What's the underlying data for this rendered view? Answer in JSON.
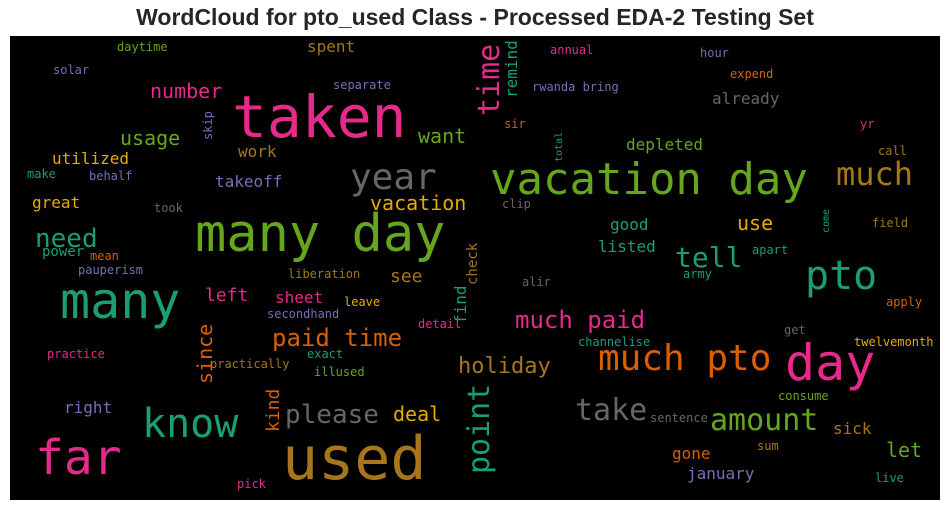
{
  "chart_data": {
    "type": "wordcloud",
    "title": "WordCloud for pto_used Class - Processed EDA-2 Testing Set",
    "colors": {
      "green": "#1b9e77",
      "orange": "#d95f02",
      "purple": "#7570b3",
      "pink": "#e7298a",
      "olive": "#66a61e",
      "gold": "#e6ab02",
      "brown": "#a6761d",
      "gray": "#666666"
    },
    "words": [
      {
        "text": "taken",
        "size": 58,
        "color": "pink"
      },
      {
        "text": "used",
        "size": 60,
        "color": "brown"
      },
      {
        "text": "many day",
        "size": 52,
        "color": "olive"
      },
      {
        "text": "vacation day",
        "size": 44,
        "color": "olive"
      },
      {
        "text": "many",
        "size": 50,
        "color": "green"
      },
      {
        "text": "far",
        "size": 48,
        "color": "pink"
      },
      {
        "text": "day",
        "size": 50,
        "color": "pink"
      },
      {
        "text": "know",
        "size": 40,
        "color": "green"
      },
      {
        "text": "pto",
        "size": 40,
        "color": "green"
      },
      {
        "text": "much pto",
        "size": 36,
        "color": "orange"
      },
      {
        "text": "year",
        "size": 36,
        "color": "gray"
      },
      {
        "text": "much",
        "size": 32,
        "color": "brown"
      },
      {
        "text": "time",
        "size": 30,
        "color": "pink"
      },
      {
        "text": "take",
        "size": 30,
        "color": "gray"
      },
      {
        "text": "point",
        "size": 30,
        "color": "green"
      },
      {
        "text": "amount",
        "size": 30,
        "color": "olive"
      },
      {
        "text": "tell",
        "size": 28,
        "color": "green"
      },
      {
        "text": "please",
        "size": 26,
        "color": "gray"
      },
      {
        "text": "need",
        "size": 26,
        "color": "green"
      },
      {
        "text": "much paid",
        "size": 24,
        "color": "pink"
      },
      {
        "text": "paid time",
        "size": 24,
        "color": "orange"
      },
      {
        "text": "holiday",
        "size": 22,
        "color": "brown"
      },
      {
        "text": "vacation",
        "size": 20,
        "color": "gold"
      },
      {
        "text": "want",
        "size": 20,
        "color": "olive"
      },
      {
        "text": "number",
        "size": 20,
        "color": "pink"
      },
      {
        "text": "usage",
        "size": 20,
        "color": "olive"
      },
      {
        "text": "deal",
        "size": 20,
        "color": "gold"
      },
      {
        "text": "use",
        "size": 20,
        "color": "gold"
      },
      {
        "text": "since",
        "size": 20,
        "color": "orange"
      },
      {
        "text": "let",
        "size": 20,
        "color": "olive"
      },
      {
        "text": "left",
        "size": 18,
        "color": "pink"
      },
      {
        "text": "kind",
        "size": 18,
        "color": "orange"
      },
      {
        "text": "see",
        "size": 18,
        "color": "brown"
      },
      {
        "text": "sick",
        "size": 16,
        "color": "brown"
      },
      {
        "text": "find",
        "size": 16,
        "color": "green"
      },
      {
        "text": "remind",
        "size": 16,
        "color": "green"
      },
      {
        "text": "utilized",
        "size": 16,
        "color": "gold"
      },
      {
        "text": "spent",
        "size": 16,
        "color": "brown"
      },
      {
        "text": "already",
        "size": 16,
        "color": "gray"
      },
      {
        "text": "depleted",
        "size": 16,
        "color": "olive"
      },
      {
        "text": "sheet",
        "size": 16,
        "color": "pink"
      },
      {
        "text": "good",
        "size": 16,
        "color": "green"
      },
      {
        "text": "listed",
        "size": 16,
        "color": "green"
      },
      {
        "text": "work",
        "size": 16,
        "color": "brown"
      },
      {
        "text": "takeoff",
        "size": 16,
        "color": "purple"
      },
      {
        "text": "great",
        "size": 16,
        "color": "gold"
      },
      {
        "text": "gone",
        "size": 16,
        "color": "orange"
      },
      {
        "text": "january",
        "size": 16,
        "color": "purple"
      },
      {
        "text": "right",
        "size": 16,
        "color": "purple"
      },
      {
        "text": "power",
        "size": 14,
        "color": "green"
      },
      {
        "text": "check",
        "size": 14,
        "color": "brown"
      },
      {
        "text": "daytime",
        "size": 12,
        "color": "olive"
      },
      {
        "text": "solar",
        "size": 12,
        "color": "purple"
      },
      {
        "text": "separate",
        "size": 12,
        "color": "purple"
      },
      {
        "text": "rwanda bring",
        "size": 12,
        "color": "purple"
      },
      {
        "text": "annual",
        "size": 12,
        "color": "pink"
      },
      {
        "text": "hour",
        "size": 12,
        "color": "purple"
      },
      {
        "text": "expend",
        "size": 12,
        "color": "orange"
      },
      {
        "text": "sir",
        "size": 12,
        "color": "orange"
      },
      {
        "text": "yr",
        "size": 12,
        "color": "pink"
      },
      {
        "text": "call",
        "size": 12,
        "color": "brown"
      },
      {
        "text": "skip",
        "size": 12,
        "color": "purple"
      },
      {
        "text": "total",
        "size": 10,
        "color": "green"
      },
      {
        "text": "make",
        "size": 12,
        "color": "green"
      },
      {
        "text": "behalf",
        "size": 12,
        "color": "purple"
      },
      {
        "text": "took",
        "size": 12,
        "color": "gray"
      },
      {
        "text": "clip",
        "size": 12,
        "color": "gray"
      },
      {
        "text": "field",
        "size": 12,
        "color": "brown"
      },
      {
        "text": "come",
        "size": 10,
        "color": "green"
      },
      {
        "text": "apart",
        "size": 12,
        "color": "green"
      },
      {
        "text": "mean",
        "size": 12,
        "color": "orange"
      },
      {
        "text": "pauperism",
        "size": 12,
        "color": "purple"
      },
      {
        "text": "liberation",
        "size": 12,
        "color": "brown"
      },
      {
        "text": "alir",
        "size": 12,
        "color": "gray"
      },
      {
        "text": "army",
        "size": 12,
        "color": "green"
      },
      {
        "text": "apply",
        "size": 12,
        "color": "orange"
      },
      {
        "text": "leave",
        "size": 12,
        "color": "gold"
      },
      {
        "text": "secondhand",
        "size": 12,
        "color": "purple"
      },
      {
        "text": "detail",
        "size": 12,
        "color": "pink"
      },
      {
        "text": "get",
        "size": 12,
        "color": "gray"
      },
      {
        "text": "practice",
        "size": 12,
        "color": "pink"
      },
      {
        "text": "exact",
        "size": 12,
        "color": "green"
      },
      {
        "text": "channelise",
        "size": 12,
        "color": "green"
      },
      {
        "text": "twelvemonth",
        "size": 12,
        "color": "gold"
      },
      {
        "text": "practically",
        "size": 12,
        "color": "brown"
      },
      {
        "text": "illused",
        "size": 12,
        "color": "olive"
      },
      {
        "text": "consume",
        "size": 12,
        "color": "olive"
      },
      {
        "text": "sentence",
        "size": 12,
        "color": "gray"
      },
      {
        "text": "sum",
        "size": 12,
        "color": "brown"
      },
      {
        "text": "pick",
        "size": 12,
        "color": "pink"
      },
      {
        "text": "live",
        "size": 12,
        "color": "green"
      }
    ]
  }
}
